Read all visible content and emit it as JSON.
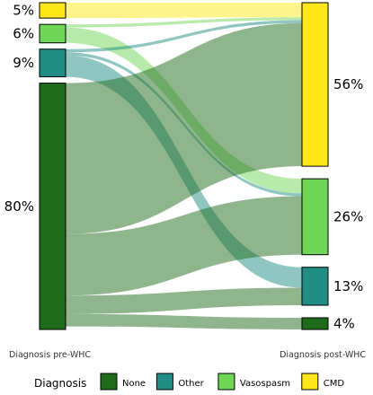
{
  "chart_data": {
    "type": "sankey",
    "x_axis_labels": {
      "left": "Diagnosis pre-WHC",
      "right": "Diagnosis post-WHC"
    },
    "legend": {
      "title": "Diagnosis",
      "placement": "bottom",
      "entries": [
        {
          "key": "none",
          "label": "None",
          "color": "#1f6b1c"
        },
        {
          "key": "other",
          "label": "Other",
          "color": "#218e86"
        },
        {
          "key": "vasospasm",
          "label": "Vasospasm",
          "color": "#6fd657"
        },
        {
          "key": "cmd",
          "label": "CMD",
          "color": "#ffe71a"
        }
      ]
    },
    "left_nodes": [
      {
        "key": "cmd",
        "label": "5%",
        "value": 5
      },
      {
        "key": "vasospasm",
        "label": "6%",
        "value": 6
      },
      {
        "key": "other",
        "label": "9%",
        "value": 9
      },
      {
        "key": "none",
        "label": "80%",
        "value": 80
      }
    ],
    "right_nodes": [
      {
        "key": "cmd",
        "label": "56%",
        "value": 56
      },
      {
        "key": "vasospasm",
        "label": "26%",
        "value": 26
      },
      {
        "key": "other",
        "label": "13%",
        "value": 13
      },
      {
        "key": "none",
        "label": "4%",
        "value": 4
      }
    ],
    "flows": [
      {
        "source": "cmd",
        "target": "cmd",
        "value": 5
      },
      {
        "source": "vasospasm",
        "target": "cmd",
        "value": 1
      },
      {
        "source": "vasospasm",
        "target": "vasospasm",
        "value": 5
      },
      {
        "source": "other",
        "target": "cmd",
        "value": 1
      },
      {
        "source": "other",
        "target": "vasospasm",
        "value": 1
      },
      {
        "source": "other",
        "target": "other",
        "value": 7
      },
      {
        "source": "none",
        "target": "cmd",
        "value": 49
      },
      {
        "source": "none",
        "target": "vasospasm",
        "value": 20
      },
      {
        "source": "none",
        "target": "other",
        "value": 6
      },
      {
        "source": "none",
        "target": "none",
        "value": 4
      }
    ]
  }
}
